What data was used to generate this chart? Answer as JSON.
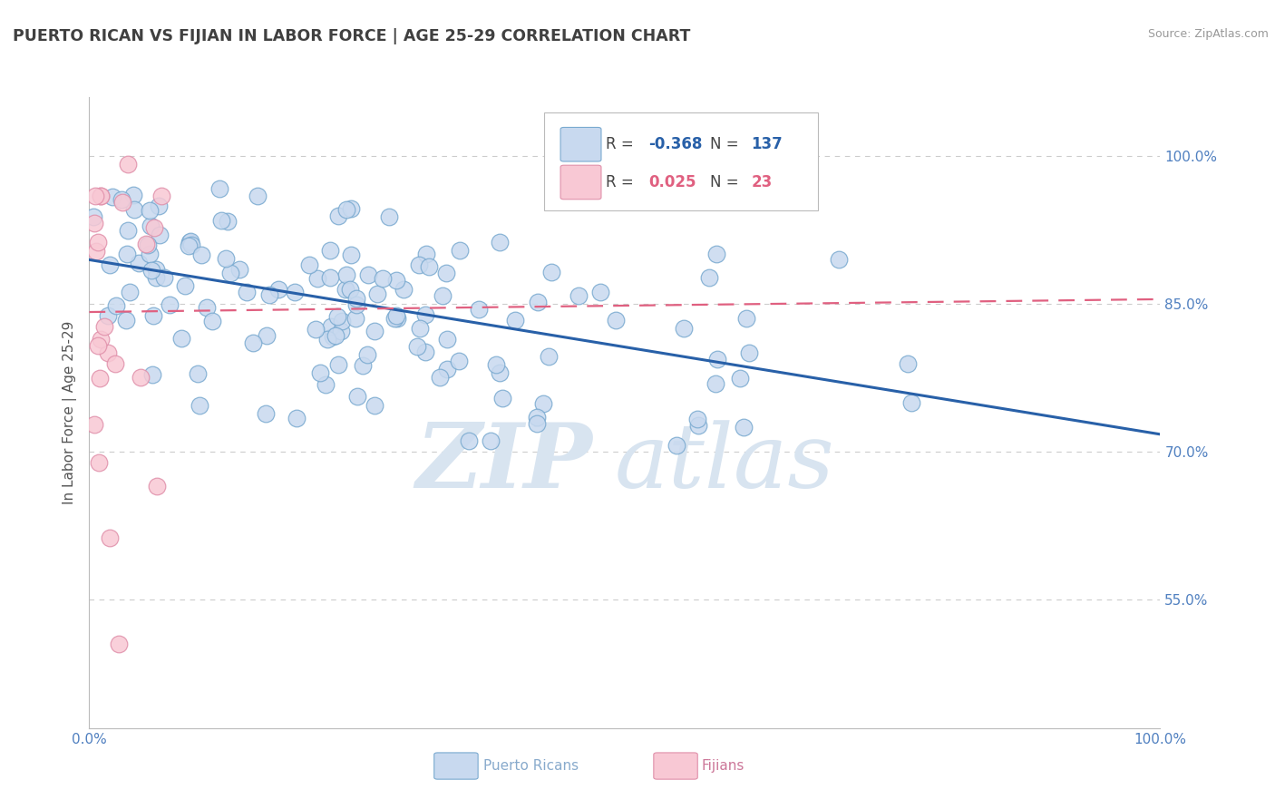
{
  "title": "PUERTO RICAN VS FIJIAN IN LABOR FORCE | AGE 25-29 CORRELATION CHART",
  "source": "Source: ZipAtlas.com",
  "ylabel": "In Labor Force | Age 25-29",
  "xlim": [
    0.0,
    1.0
  ],
  "ylim": [
    0.42,
    1.06
  ],
  "yticks": [
    0.55,
    0.7,
    0.85,
    1.0
  ],
  "ytick_labels": [
    "55.0%",
    "70.0%",
    "85.0%",
    "100.0%"
  ],
  "xticks": [
    0.0,
    1.0
  ],
  "xtick_labels": [
    "0.0%",
    "100.0%"
  ],
  "blue_R": -0.368,
  "blue_N": 137,
  "pink_R": 0.025,
  "pink_N": 23,
  "blue_fill": "#c8d9ef",
  "blue_edge": "#7aaad0",
  "pink_fill": "#f8c8d4",
  "pink_edge": "#e090aa",
  "blue_line_color": "#2860a8",
  "pink_line_color": "#e06080",
  "grid_color": "#cccccc",
  "title_color": "#404040",
  "ylabel_color": "#555555",
  "tick_label_color": "#5080c0",
  "watermark_color": "#d8e4f0",
  "blue_line_start": 0.895,
  "blue_line_end": 0.718,
  "pink_line_start": 0.842,
  "pink_line_end": 0.855,
  "blue_seed": 12,
  "pink_seed": 99
}
